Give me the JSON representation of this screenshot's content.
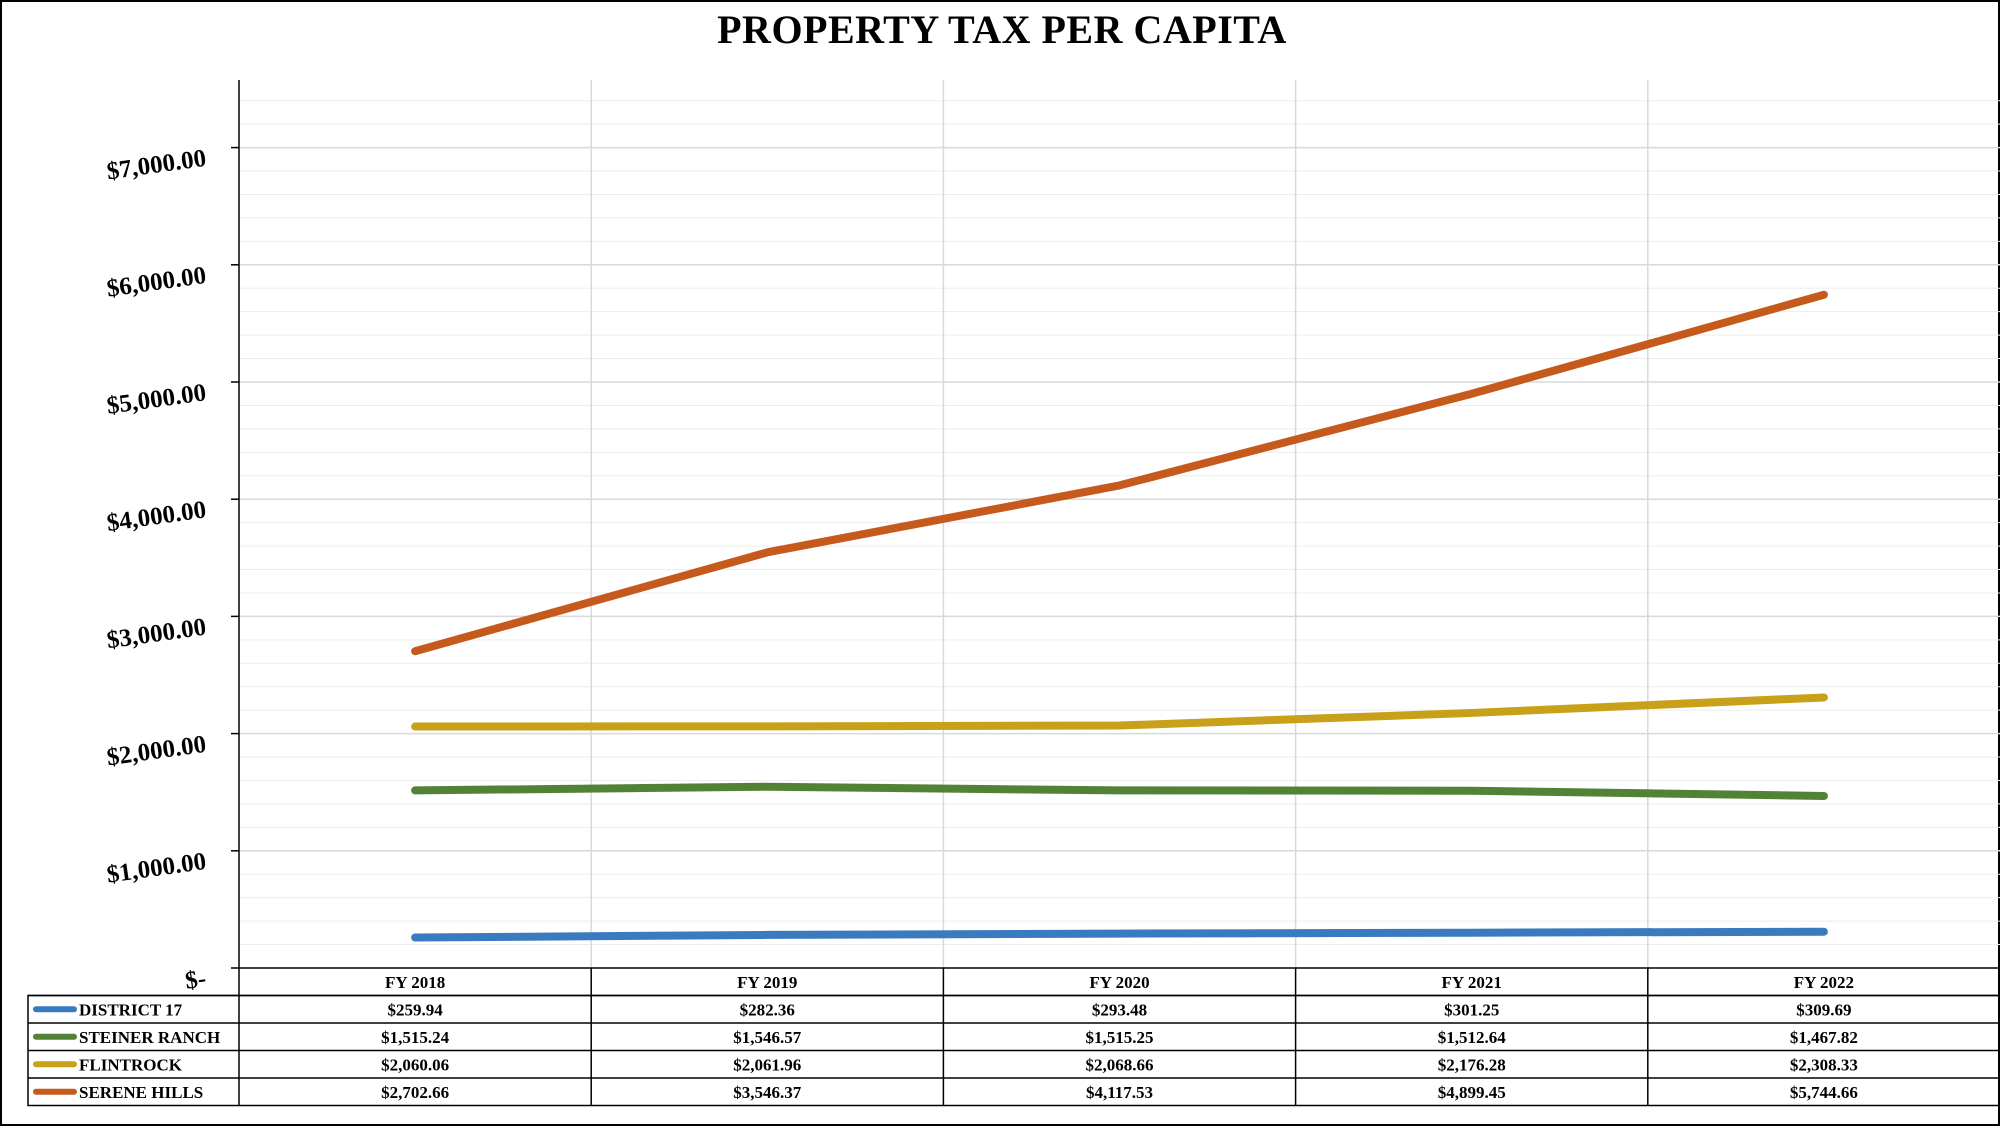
{
  "colors": {
    "district17": "#3a7bbf",
    "steiner": "#548235",
    "flintrock": "#c9a01a",
    "serene": "#c55a1c",
    "grid_major": "#d9d9d9",
    "grid_minor": "#ededed"
  },
  "chart_data": {
    "type": "line",
    "title": "PROPERTY TAX PER CAPITA",
    "categories": [
      "FY 2018",
      "FY 2019",
      "FY 2020",
      "FY 2021",
      "FY 2022"
    ],
    "ylim": [
      0,
      7500
    ],
    "ytick_values": [
      0,
      1000,
      2000,
      3000,
      4000,
      5000,
      6000,
      7000
    ],
    "ytick_labels": [
      "$-",
      "$1,000.00",
      "$2,000.00",
      "$3,000.00",
      "$4,000.00",
      "$5,000.00",
      "$6,000.00",
      "$7,000.00"
    ],
    "grid": true,
    "legend": "data-table",
    "series": [
      {
        "name": "DISTRICT 17",
        "color": "#3a7bbf",
        "values": [
          259.94,
          282.36,
          293.48,
          301.25,
          309.69
        ],
        "labels": [
          "$259.94",
          "$282.36",
          "$293.48",
          "$301.25",
          "$309.69"
        ]
      },
      {
        "name": "STEINER RANCH",
        "color": "#548235",
        "values": [
          1515.24,
          1546.57,
          1515.25,
          1512.64,
          1467.82
        ],
        "labels": [
          "$1,515.24",
          "$1,546.57",
          "$1,515.25",
          "$1,512.64",
          "$1,467.82"
        ]
      },
      {
        "name": "FLINTROCK",
        "color": "#c9a01a",
        "values": [
          2060.06,
          2061.96,
          2068.66,
          2176.28,
          2308.33
        ],
        "labels": [
          "$2,060.06",
          "$2,061.96",
          "$2,068.66",
          "$2,176.28",
          "$2,308.33"
        ]
      },
      {
        "name": "SERENE HILLS",
        "color": "#c55a1c",
        "values": [
          2702.66,
          3546.37,
          4117.53,
          4899.45,
          5744.66
        ],
        "labels": [
          "$2,702.66",
          "$3,546.37",
          "$4,117.53",
          "$4,899.45",
          "$5,744.66"
        ]
      }
    ]
  }
}
